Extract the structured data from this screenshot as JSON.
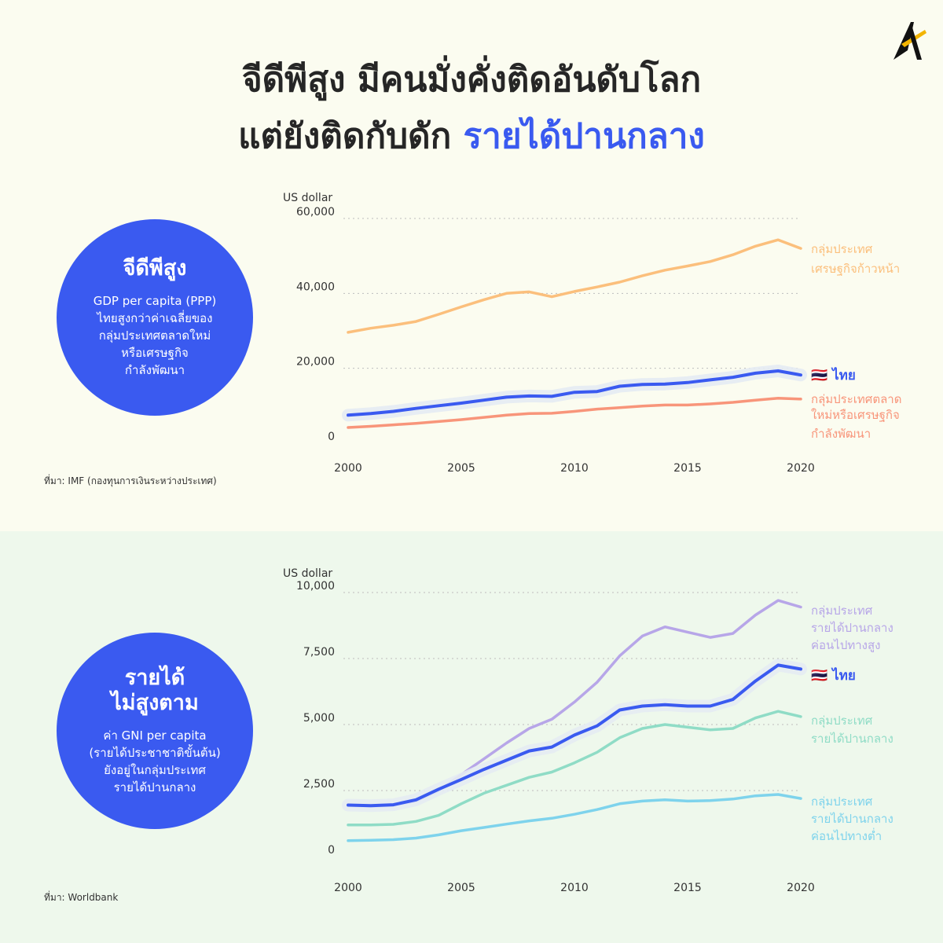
{
  "title": {
    "line1": "จีดีพีสูง มีคนมั่งคั่งติดอันดับโลก",
    "line2_prefix": "แต่ยังติดกับดัก ",
    "line2_highlight": "รายได้ปานกลาง"
  },
  "panel1": {
    "circle_heading": "จีดีพีสูง",
    "circle_body": [
      "GDP per capita (PPP)",
      "ไทยสูงกว่าค่าเฉลี่ยของ",
      "กลุ่มประเทศตลาดใหม่",
      "หรือเศรษฐกิจ",
      "กำลังพัฒนา"
    ],
    "source": "ที่มา: IMF (กองทุนการเงินระหว่างประเทศ)"
  },
  "panel2": {
    "circle_heading": [
      "รายได้",
      "ไม่สูงตาม"
    ],
    "circle_body": [
      "ค่า GNI per capita",
      "(รายได้ประชาชาติขั้นต้น)",
      "ยังอยู่ในกลุ่มประเทศ",
      "รายได้ปานกลาง"
    ],
    "source": "ที่มา: Worldbank"
  },
  "colors": {
    "accent": "#3a5af0",
    "advanced": "#fbbf7c",
    "thailand": "#3a5af0",
    "emerging": "#f8957a",
    "upper_middle": "#b7a6e8",
    "middle": "#8fdcc6",
    "lower_middle": "#7ed3ec"
  },
  "chart_data": [
    {
      "type": "line",
      "ylabel": "US dollar",
      "ylim": [
        0,
        60000
      ],
      "yticks": [
        "0",
        "20,000",
        "40,000",
        "60,000"
      ],
      "ytick_values": [
        0,
        20000,
        40000,
        60000
      ],
      "xticks": [
        2000,
        2005,
        2010,
        2015,
        2020
      ],
      "x": [
        2000,
        2001,
        2002,
        2003,
        2004,
        2005,
        2006,
        2007,
        2008,
        2009,
        2010,
        2011,
        2012,
        2013,
        2014,
        2015,
        2016,
        2017,
        2018,
        2019,
        2020
      ],
      "grid": true,
      "series": [
        {
          "name": "กลุ่มประเทศเศรษฐกิจก้าวหน้า",
          "label_lines": [
            "กลุ่มประเทศ",
            "เศรษฐกิจก้าวหน้า"
          ],
          "color": "#fbbf7c",
          "values": [
            29600,
            30700,
            31500,
            32500,
            34400,
            36400,
            38300,
            40000,
            40400,
            39100,
            40500,
            41700,
            43000,
            44700,
            46200,
            47300,
            48500,
            50300,
            52600,
            54300,
            52000
          ]
        },
        {
          "name": "ไทย",
          "label_lines": [
            "🇹🇭 ไทย"
          ],
          "color": "#3a5af0",
          "highlight": true,
          "values": [
            7500,
            7900,
            8500,
            9300,
            10000,
            10700,
            11500,
            12300,
            12600,
            12500,
            13600,
            13800,
            15200,
            15700,
            15800,
            16200,
            16900,
            17600,
            18700,
            19300,
            18200
          ]
        },
        {
          "name": "กลุ่มประเทศตลาดใหม่หรือเศรษฐกิจกำลังพัฒนา",
          "label_lines": [
            "กลุ่มประเทศตลาด",
            "ใหม่หรือเศรษฐกิจ",
            "กำลังพัฒนา"
          ],
          "color": "#f8957a",
          "values": [
            4200,
            4500,
            4900,
            5300,
            5800,
            6300,
            6900,
            7500,
            7900,
            8000,
            8500,
            9100,
            9500,
            9900,
            10200,
            10200,
            10500,
            10900,
            11500,
            12000,
            11800
          ]
        }
      ]
    },
    {
      "type": "line",
      "ylabel": "US dollar",
      "ylim": [
        0,
        10000
      ],
      "yticks": [
        "0",
        "2,500",
        "5,000",
        "7,500",
        "10,000"
      ],
      "ytick_values": [
        0,
        2500,
        5000,
        7500,
        10000
      ],
      "xticks": [
        2000,
        2005,
        2010,
        2015,
        2020
      ],
      "x": [
        2000,
        2001,
        2002,
        2003,
        2004,
        2005,
        2006,
        2007,
        2008,
        2009,
        2010,
        2011,
        2012,
        2013,
        2014,
        2015,
        2016,
        2017,
        2018,
        2019,
        2020
      ],
      "grid": true,
      "series": [
        {
          "name": "กลุ่มประเทศรายได้ปานกลางค่อนไปทางสูง",
          "label_lines": [
            "กลุ่มประเทศ",
            "รายได้ปานกลาง",
            "ค่อนไปทางสูง"
          ],
          "color": "#b7a6e8",
          "values": [
            1950,
            1900,
            1950,
            2100,
            2500,
            3100,
            3700,
            4300,
            4850,
            5200,
            5850,
            6600,
            7600,
            8350,
            8700,
            8500,
            8300,
            8450,
            9150,
            9700,
            9450
          ]
        },
        {
          "name": "ไทย",
          "label_lines": [
            "🇹🇭 ไทย"
          ],
          "color": "#3a5af0",
          "highlight": true,
          "values": [
            1950,
            1930,
            1960,
            2150,
            2550,
            2920,
            3300,
            3650,
            4000,
            4150,
            4600,
            4950,
            5550,
            5700,
            5750,
            5700,
            5700,
            5950,
            6650,
            7250,
            7100
          ]
        },
        {
          "name": "กลุ่มประเทศรายได้ปานกลาง",
          "label_lines": [
            "กลุ่มประเทศ",
            "รายได้ปานกลาง"
          ],
          "color": "#8fdcc6",
          "values": [
            1200,
            1200,
            1220,
            1330,
            1560,
            2000,
            2400,
            2700,
            3000,
            3200,
            3550,
            3950,
            4500,
            4850,
            5000,
            4900,
            4800,
            4850,
            5250,
            5500,
            5300
          ]
        },
        {
          "name": "กลุ่มประเทศรายได้ปานกลางค่อนไปทางต่ำ",
          "label_lines": [
            "กลุ่มประเทศ",
            "รายได้ปานกลาง",
            "ค่อนไปทางต่ำ"
          ],
          "color": "#7ed3ec",
          "values": [
            600,
            620,
            640,
            700,
            820,
            980,
            1100,
            1230,
            1350,
            1450,
            1600,
            1780,
            2000,
            2100,
            2150,
            2100,
            2120,
            2180,
            2300,
            2350,
            2200
          ]
        }
      ]
    }
  ]
}
